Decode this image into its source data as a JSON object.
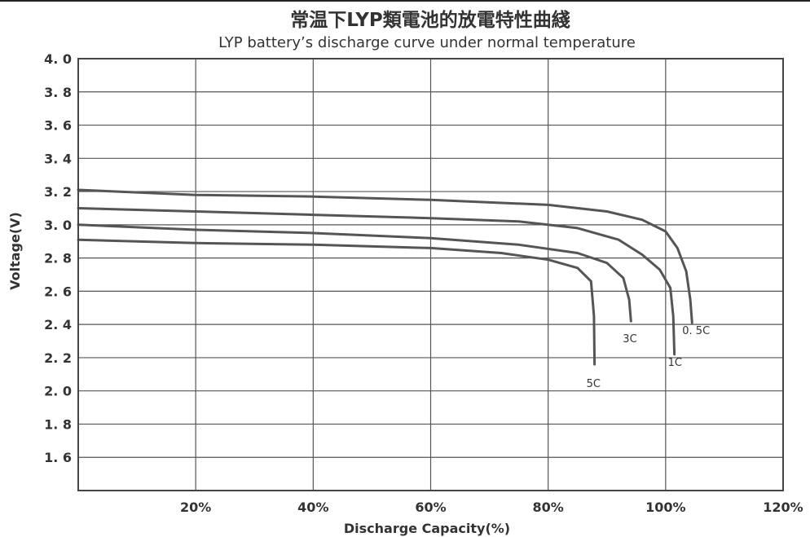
{
  "chart_data": {
    "type": "line",
    "title": "常温下LYP類電池的放電特性曲綫",
    "subtitle": "LYP battery’s discharge curve under normal temperature",
    "xlabel": "Discharge Capacity(%)",
    "ylabel": "Voltage(V)",
    "xlim": [
      0,
      120
    ],
    "ylim": [
      1.4,
      4.0
    ],
    "x_ticks": [
      20,
      40,
      60,
      80,
      100,
      120
    ],
    "x_tick_labels": [
      "20%",
      "40%",
      "60%",
      "80%",
      "100%",
      "120%"
    ],
    "y_ticks": [
      4.0,
      3.8,
      3.6,
      3.4,
      3.2,
      3.0,
      2.8,
      2.6,
      2.4,
      2.2,
      2.0,
      1.8,
      1.6
    ],
    "y_tick_labels": [
      "4. 0",
      "3. 8",
      "3. 6",
      "3. 4",
      "3. 2",
      "3. 0",
      "2. 8",
      "2. 6",
      "2. 4",
      "2. 2",
      "2. 0",
      "1. 8",
      "1. 6"
    ],
    "grid": true,
    "series": [
      {
        "name": "0. 5C",
        "points": [
          [
            0,
            3.21
          ],
          [
            20,
            3.18
          ],
          [
            40,
            3.17
          ],
          [
            60,
            3.15
          ],
          [
            80,
            3.12
          ],
          [
            90,
            3.08
          ],
          [
            96,
            3.03
          ],
          [
            100,
            2.96
          ],
          [
            102,
            2.86
          ],
          [
            103.5,
            2.72
          ],
          [
            104.2,
            2.55
          ],
          [
            104.5,
            2.41
          ]
        ]
      },
      {
        "name": "1C",
        "points": [
          [
            0,
            3.1
          ],
          [
            20,
            3.08
          ],
          [
            40,
            3.06
          ],
          [
            60,
            3.04
          ],
          [
            75,
            3.02
          ],
          [
            85,
            2.98
          ],
          [
            92,
            2.91
          ],
          [
            96,
            2.82
          ],
          [
            99,
            2.73
          ],
          [
            100.8,
            2.62
          ],
          [
            101.3,
            2.45
          ],
          [
            101.5,
            2.22
          ]
        ]
      },
      {
        "name": "3C",
        "points": [
          [
            0,
            3.0
          ],
          [
            20,
            2.97
          ],
          [
            40,
            2.95
          ],
          [
            60,
            2.92
          ],
          [
            75,
            2.88
          ],
          [
            85,
            2.83
          ],
          [
            90,
            2.77
          ],
          [
            92.8,
            2.68
          ],
          [
            93.8,
            2.55
          ],
          [
            94.1,
            2.42
          ]
        ]
      },
      {
        "name": "5C",
        "points": [
          [
            0,
            2.91
          ],
          [
            20,
            2.89
          ],
          [
            40,
            2.88
          ],
          [
            60,
            2.86
          ],
          [
            72,
            2.83
          ],
          [
            80,
            2.79
          ],
          [
            85,
            2.74
          ],
          [
            87.3,
            2.66
          ],
          [
            87.8,
            2.45
          ],
          [
            87.9,
            2.16
          ]
        ]
      }
    ]
  }
}
